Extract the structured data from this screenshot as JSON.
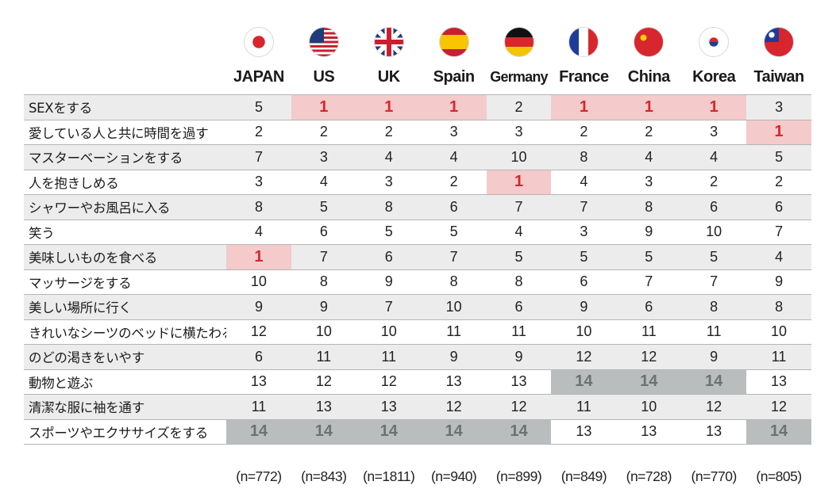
{
  "countries": [
    {
      "name": "JAPAN",
      "flag": "japan-flag",
      "n": "(n=772)"
    },
    {
      "name": "US",
      "flag": "us-flag",
      "n": "(n=843)"
    },
    {
      "name": "UK",
      "flag": "uk-flag",
      "n": "(n=1811)"
    },
    {
      "name": "Spain",
      "flag": "spain-flag",
      "n": "(n=940)"
    },
    {
      "name": "Germany",
      "flag": "germany-flag",
      "n": "(n=899)"
    },
    {
      "name": "France",
      "flag": "france-flag",
      "n": "(n=849)"
    },
    {
      "name": "China",
      "flag": "china-flag",
      "n": "(n=728)"
    },
    {
      "name": "Korea",
      "flag": "korea-flag",
      "n": "(n=770)"
    },
    {
      "name": "Taiwan",
      "flag": "taiwan-flag",
      "n": "(n=805)"
    }
  ],
  "rows": [
    {
      "label": "SEXをする",
      "ranks": [
        "5",
        "1",
        "1",
        "1",
        "2",
        "1",
        "1",
        "1",
        "3"
      ]
    },
    {
      "label": "愛している人と共に時間を過す",
      "ranks": [
        "2",
        "2",
        "2",
        "3",
        "3",
        "2",
        "2",
        "3",
        "1"
      ]
    },
    {
      "label": "マスターベーションをする",
      "ranks": [
        "7",
        "3",
        "4",
        "4",
        "10",
        "8",
        "4",
        "4",
        "5"
      ]
    },
    {
      "label": "人を抱きしめる",
      "ranks": [
        "3",
        "4",
        "3",
        "2",
        "1",
        "4",
        "3",
        "2",
        "2"
      ]
    },
    {
      "label": "シャワーやお風呂に入る",
      "ranks": [
        "8",
        "5",
        "8",
        "6",
        "7",
        "7",
        "8",
        "6",
        "6"
      ]
    },
    {
      "label": "笑う",
      "ranks": [
        "4",
        "6",
        "5",
        "5",
        "4",
        "3",
        "9",
        "10",
        "7"
      ]
    },
    {
      "label": "美味しいものを食べる",
      "ranks": [
        "1",
        "7",
        "6",
        "7",
        "5",
        "5",
        "5",
        "5",
        "4"
      ]
    },
    {
      "label": "マッサージをする",
      "ranks": [
        "10",
        "8",
        "9",
        "8",
        "8",
        "6",
        "7",
        "7",
        "9"
      ]
    },
    {
      "label": "美しい場所に行く",
      "ranks": [
        "9",
        "9",
        "7",
        "10",
        "6",
        "9",
        "6",
        "8",
        "8"
      ]
    },
    {
      "label": "きれいなシーツのベッドに横たわる",
      "ranks": [
        "12",
        "10",
        "10",
        "11",
        "11",
        "10",
        "11",
        "11",
        "10"
      ]
    },
    {
      "label": "のどの渇きをいやす",
      "ranks": [
        "6",
        "11",
        "11",
        "9",
        "9",
        "12",
        "12",
        "9",
        "11"
      ]
    },
    {
      "label": "動物と遊ぶ",
      "ranks": [
        "13",
        "12",
        "12",
        "13",
        "13",
        "14",
        "14",
        "14",
        "13"
      ]
    },
    {
      "label": "清潔な服に袖を通す",
      "ranks": [
        "11",
        "13",
        "13",
        "12",
        "12",
        "11",
        "10",
        "12",
        "12"
      ]
    },
    {
      "label": "スポーツやエクササイズをする",
      "ranks": [
        "14",
        "14",
        "14",
        "14",
        "14",
        "13",
        "13",
        "13",
        "14"
      ]
    }
  ],
  "colors": {
    "top_rank_bg": "#f4caca",
    "top_rank_text": "#d7262e",
    "bottom_rank_bg": "#b9bdbd",
    "bottom_rank_text": "#6c7272",
    "alt_row_bg": "#ececec"
  }
}
